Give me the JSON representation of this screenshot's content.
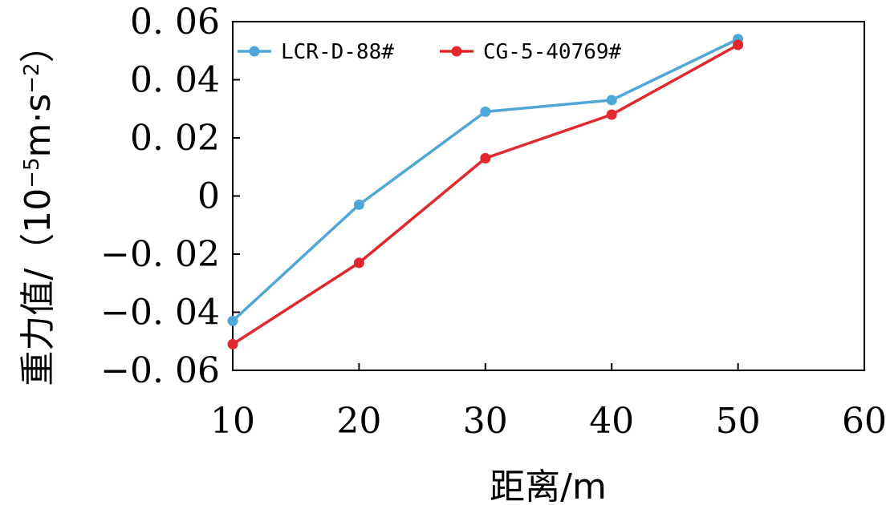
{
  "chart_data": {
    "type": "line",
    "x": [
      10,
      20,
      30,
      40,
      50
    ],
    "series": [
      {
        "name": "LCR-D-88#",
        "color": "#4ea7d6",
        "values": [
          -0.043,
          -0.003,
          0.029,
          0.033,
          0.054
        ]
      },
      {
        "name": "CG-5-40769#",
        "color": "#e0282e",
        "values": [
          -0.051,
          -0.023,
          0.013,
          0.028,
          0.052
        ]
      }
    ],
    "xlim": [
      10,
      60
    ],
    "ylim": [
      -0.06,
      0.06
    ],
    "xticks": [
      10,
      20,
      30,
      40,
      50,
      60
    ],
    "yticks": [
      0.06,
      0.04,
      0.02,
      0,
      -0.02,
      -0.04,
      -0.06
    ],
    "xtick_labels": [
      "10",
      "20",
      "30",
      "40",
      "50",
      "60"
    ],
    "ytick_labels": [
      "0. 06",
      "0. 04",
      "0. 02",
      "0",
      "−0. 02",
      "−0. 04",
      "−0. 06"
    ],
    "xlabel": "距离/m",
    "ylabel_main": "重力值/（10",
    "ylabel_exp1": "−5",
    "ylabel_mid": "m·s",
    "ylabel_exp2": "−2",
    "ylabel_end": "）",
    "legend_position": "top-left",
    "grid": false
  }
}
